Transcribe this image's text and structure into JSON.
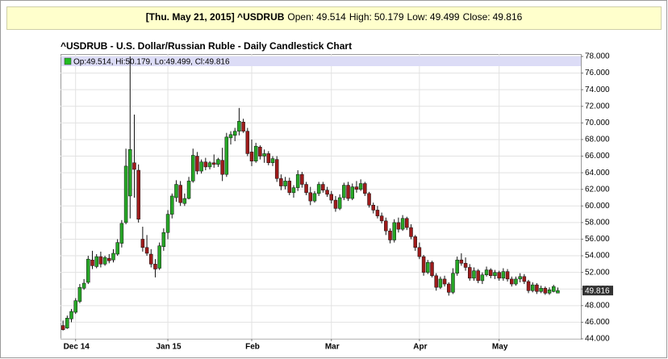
{
  "header": {
    "title": "[Thu. May 21, 2015] ^USDRUB",
    "labels": [
      "Open:",
      "High:",
      "Low:",
      "Close:"
    ]
  },
  "chart_data": {
    "type": "candlestick",
    "title": "^USDRUB - U.S. Dollar/Russian Ruble - Daily Candlestick Chart",
    "legend_labels": [
      "Op:",
      ", Hi:",
      ", Lo:",
      ", Cl:"
    ],
    "x": [
      0,
      1,
      2,
      3,
      4,
      5,
      6,
      7,
      8,
      9,
      10,
      11,
      12,
      13,
      14,
      15,
      16,
      17,
      18,
      19,
      20,
      21,
      22,
      23,
      24,
      25,
      26,
      27,
      28,
      29,
      30,
      31,
      32,
      33,
      34,
      35,
      36,
      37,
      38,
      39,
      40,
      41,
      42,
      43,
      44,
      45,
      46,
      47,
      48,
      49,
      50,
      51,
      52,
      53,
      54,
      55,
      56,
      57,
      58,
      59,
      60,
      61,
      62,
      63,
      64,
      65,
      66,
      67,
      68,
      69,
      70,
      71,
      72,
      73,
      74,
      75,
      76,
      77,
      78,
      79,
      80,
      81,
      82,
      83,
      84,
      85,
      86,
      87,
      88,
      89,
      90,
      91,
      92,
      93,
      94,
      95,
      96,
      97,
      98,
      99,
      100,
      101,
      102,
      103,
      104,
      105,
      106,
      107,
      108,
      109,
      110,
      111,
      112,
      113,
      114,
      115,
      116,
      117,
      118
    ],
    "open": [
      45.6,
      45.3,
      46.4,
      47.2,
      48.5,
      50.1,
      50.8,
      53.5,
      52.7,
      53.9,
      53.0,
      53.7,
      53.5,
      54.2,
      55.5,
      58.0,
      61.2,
      65.2,
      64.3,
      56.0,
      55.0,
      54.2,
      53.0,
      52.5,
      55.1,
      56.8,
      59.0,
      61.0,
      62.5,
      60.3,
      60.9,
      63.0,
      66.0,
      64.2,
      65.3,
      64.7,
      65.2,
      65.0,
      65.5,
      63.8,
      68.2,
      68.5,
      69.0,
      70.1,
      69.0,
      66.5,
      65.4,
      67.1,
      66.0,
      66.3,
      65.2,
      65.6,
      63.3,
      62.4,
      63.0,
      61.6,
      62.2,
      63.8,
      62.6,
      61.6,
      60.6,
      61.5,
      62.6,
      61.9,
      61.4,
      60.7,
      59.7,
      61.0,
      62.5,
      60.9,
      62.3,
      62.0,
      62.7,
      61.5,
      60.1,
      59.5,
      58.8,
      58.2,
      57.0,
      55.9,
      58.0,
      57.2,
      58.5,
      57.4,
      56.3,
      55.0,
      53.9,
      52.0,
      53.2,
      51.6,
      50.2,
      51.2,
      50.6,
      49.6,
      51.9,
      53.5,
      53.1,
      52.6,
      51.3,
      52.2,
      51.0,
      51.7,
      52.3,
      51.6,
      52.0,
      51.3,
      52.1,
      51.2,
      50.6,
      51.2,
      51.5,
      50.9,
      49.8,
      50.5,
      49.7,
      50.1,
      49.5,
      49.7,
      49.514
    ],
    "high": [
      46.2,
      46.8,
      47.6,
      48.9,
      50.6,
      51.2,
      54.0,
      54.6,
      54.2,
      54.5,
      54.0,
      54.2,
      54.8,
      56.0,
      58.3,
      66.9,
      78.0,
      71.0,
      65.0,
      57.5,
      56.5,
      54.8,
      53.6,
      55.6,
      57.3,
      59.5,
      61.5,
      63.1,
      63.0,
      61.5,
      63.5,
      66.9,
      66.5,
      65.6,
      65.8,
      65.4,
      66.2,
      65.8,
      67.0,
      68.8,
      69.0,
      69.4,
      71.8,
      70.5,
      69.4,
      68.0,
      67.6,
      67.3,
      66.8,
      66.6,
      66.0,
      66.0,
      63.8,
      63.5,
      63.4,
      62.5,
      64.3,
      64.1,
      62.9,
      62.3,
      61.8,
      62.9,
      62.9,
      62.3,
      61.8,
      61.2,
      61.4,
      62.8,
      62.9,
      62.7,
      63.0,
      63.2,
      62.9,
      61.7,
      60.4,
      60.0,
      59.2,
      58.6,
      57.3,
      58.4,
      58.6,
      58.9,
      58.7,
      57.8,
      56.5,
      55.6,
      54.1,
      53.5,
      53.4,
      51.9,
      51.5,
      51.6,
      50.8,
      52.5,
      53.9,
      54.3,
      53.8,
      53.0,
      52.6,
      52.4,
      52.0,
      52.7,
      52.5,
      52.3,
      52.2,
      52.5,
      52.4,
      51.5,
      51.5,
      51.9,
      51.8,
      51.1,
      50.8,
      50.7,
      50.4,
      50.3,
      50.2,
      50.5,
      50.179
    ],
    "low": [
      45.0,
      45.2,
      46.0,
      47.0,
      48.3,
      49.9,
      50.6,
      52.4,
      52.5,
      52.6,
      52.8,
      53.1,
      53.2,
      54.0,
      55.0,
      57.8,
      58.5,
      61.0,
      58.0,
      54.5,
      54.0,
      52.6,
      51.4,
      52.3,
      54.6,
      56.0,
      58.5,
      60.5,
      60.0,
      60.0,
      60.8,
      62.8,
      63.8,
      63.9,
      64.3,
      64.4,
      64.6,
      64.7,
      63.0,
      63.5,
      67.4,
      67.8,
      68.5,
      68.8,
      66.0,
      64.8,
      65.2,
      65.6,
      65.2,
      64.9,
      64.8,
      62.9,
      61.9,
      62.0,
      61.3,
      61.0,
      61.8,
      62.2,
      61.3,
      60.1,
      60.4,
      61.2,
      61.6,
      61.1,
      60.3,
      59.3,
      59.5,
      60.7,
      60.6,
      60.7,
      61.6,
      61.8,
      61.2,
      59.8,
      59.1,
      58.5,
      57.9,
      56.5,
      55.5,
      55.6,
      56.8,
      57.0,
      57.1,
      56.0,
      54.6,
      53.6,
      51.6,
      51.8,
      51.4,
      49.8,
      50.0,
      50.3,
      49.2,
      49.4,
      51.6,
      52.8,
      52.2,
      51.0,
      51.0,
      50.7,
      50.6,
      51.5,
      51.3,
      51.2,
      51.0,
      51.0,
      50.9,
      50.3,
      50.4,
      50.8,
      50.6,
      49.5,
      49.6,
      49.4,
      49.5,
      49.3,
      49.3,
      49.6,
      49.499
    ],
    "close": [
      45.1,
      46.5,
      47.3,
      48.6,
      50.2,
      50.7,
      53.6,
      52.8,
      53.9,
      53.0,
      53.8,
      53.4,
      54.3,
      55.6,
      57.9,
      64.8,
      66.8,
      64.4,
      58.4,
      55.0,
      54.3,
      53.0,
      52.4,
      55.2,
      56.8,
      59.0,
      61.2,
      62.6,
      60.4,
      60.9,
      63.0,
      66.1,
      64.2,
      65.3,
      64.7,
      65.2,
      65.0,
      65.6,
      63.8,
      68.3,
      68.6,
      69.0,
      70.2,
      69.0,
      66.3,
      65.4,
      67.2,
      66.0,
      66.3,
      65.2,
      65.7,
      63.3,
      62.4,
      63.0,
      61.6,
      62.2,
      63.8,
      62.6,
      61.6,
      60.6,
      61.5,
      62.6,
      61.9,
      61.4,
      60.7,
      59.7,
      61.0,
      62.5,
      60.9,
      62.3,
      62.0,
      62.7,
      61.5,
      60.1,
      59.5,
      58.8,
      58.2,
      57.0,
      55.9,
      58.0,
      57.2,
      58.5,
      57.4,
      56.3,
      55.0,
      53.9,
      52.0,
      53.2,
      51.6,
      50.2,
      51.2,
      50.6,
      49.6,
      51.9,
      53.5,
      53.1,
      52.6,
      51.3,
      52.2,
      51.0,
      51.7,
      52.3,
      51.6,
      52.0,
      51.3,
      52.1,
      51.2,
      50.6,
      51.2,
      51.5,
      50.9,
      49.8,
      50.5,
      49.7,
      50.1,
      49.5,
      49.9,
      50.3,
      49.816
    ],
    "colors": {
      "up": "#26a626",
      "down": "#9e1b1b",
      "legend": "#22bb22"
    },
    "xlim": [
      -0.6,
      123.5
    ],
    "xticks": [
      {
        "value": 3,
        "label": "Dec 14"
      },
      {
        "value": 25,
        "label": "Jan 15"
      },
      {
        "value": 45,
        "label": "Feb"
      },
      {
        "value": 64,
        "label": "Mar"
      },
      {
        "value": 85,
        "label": "Apr"
      },
      {
        "value": 104,
        "label": "May"
      }
    ],
    "ylim": [
      44,
      78
    ],
    "yticks": [
      {
        "value": 44,
        "label": "44.000"
      },
      {
        "value": 46,
        "label": "46.000"
      },
      {
        "value": 48,
        "label": "48.000"
      },
      {
        "value": 50,
        "label": "50.000"
      },
      {
        "value": 52,
        "label": "52.000"
      },
      {
        "value": 54,
        "label": "54.000"
      },
      {
        "value": 56,
        "label": "56.000"
      },
      {
        "value": 58,
        "label": "58.000"
      },
      {
        "value": 60,
        "label": "60.000"
      },
      {
        "value": 62,
        "label": "62.000"
      },
      {
        "value": 64,
        "label": "64.000"
      },
      {
        "value": 66,
        "label": "66.000"
      },
      {
        "value": 68,
        "label": "68.000"
      },
      {
        "value": 70,
        "label": "70.000"
      },
      {
        "value": 72,
        "label": "72.000"
      },
      {
        "value": 74,
        "label": "74.000"
      },
      {
        "value": 76,
        "label": "76.000"
      },
      {
        "value": 78,
        "label": "78.000"
      }
    ],
    "grid": true
  }
}
